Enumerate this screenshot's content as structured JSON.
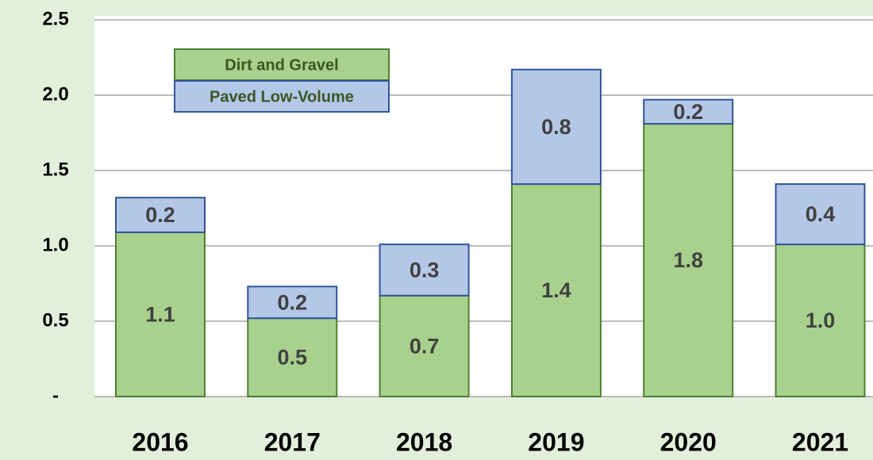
{
  "chart_data": {
    "type": "stacked_bar",
    "categories": [
      "2016",
      "2017",
      "2018",
      "2019",
      "2020",
      "2021"
    ],
    "series": [
      {
        "name": "Dirt and Gravel",
        "color": "#a9d18e",
        "values": [
          1.09,
          0.52,
          0.67,
          1.41,
          1.81,
          1.01
        ],
        "value_labels": [
          "1.1",
          "0.5",
          "0.7",
          "1.4",
          "1.8",
          "1.0"
        ]
      },
      {
        "name": "Paved Low-Volume",
        "color": "#b4c7e7",
        "values": [
          0.23,
          0.21,
          0.34,
          0.76,
          0.16,
          0.4
        ],
        "value_labels": [
          "0.2",
          "0.2",
          "0.3",
          "0.8",
          "0.2",
          "0.4"
        ]
      }
    ],
    "ylim": [
      0,
      2.5
    ],
    "yticks": [
      {
        "value": 0,
        "label": "-"
      },
      0.5,
      {
        "value": 1,
        "label": "1.0"
      },
      1.5,
      {
        "value": 2,
        "label": "2.0"
      },
      2.5
    ],
    "grid": true
  }
}
